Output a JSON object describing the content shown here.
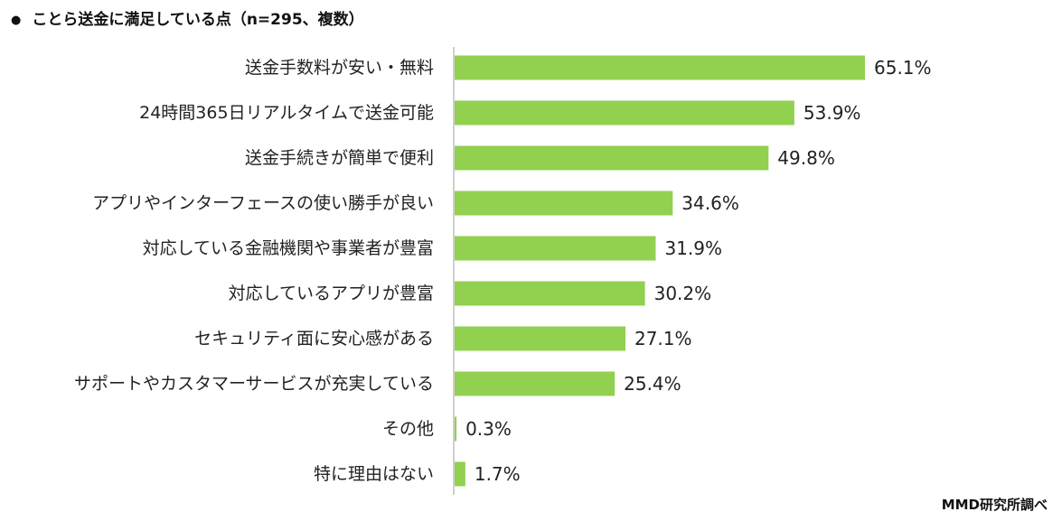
{
  "header": {
    "bullet": "●",
    "title": "ことら送金に満足している点（n=295、複数）"
  },
  "footer": {
    "source": "MMD研究所調べ"
  },
  "colors": {
    "bar": "#92d050",
    "axis": "#bfbfbf",
    "text": "#222222"
  },
  "chart_data": {
    "type": "bar",
    "orientation": "horizontal",
    "title": "ことら送金に満足している点（n=295、複数）",
    "xlabel": "",
    "ylabel": "",
    "xlim": [
      0,
      65.1
    ],
    "grid": false,
    "legend": "none",
    "categories": [
      "送金手数料が安い・無料",
      "24時間365日リアルタイムで送金可能",
      "送金手続きが簡単で便利",
      "アプリやインターフェースの使い勝手が良い",
      "対応している金融機関や事業者が豊富",
      "対応しているアプリが豊富",
      "セキュリティ面に安心感がある",
      "サポートやカスタマーサービスが充実している",
      "その他",
      "特に理由はない"
    ],
    "values": [
      65.1,
      53.9,
      49.8,
      34.6,
      31.9,
      30.2,
      27.1,
      25.4,
      0.3,
      1.7
    ],
    "value_labels": [
      "65.1%",
      "53.9%",
      "49.8%",
      "34.6%",
      "31.9%",
      "30.2%",
      "27.1%",
      "25.4%",
      "0.3%",
      "1.7%"
    ]
  }
}
